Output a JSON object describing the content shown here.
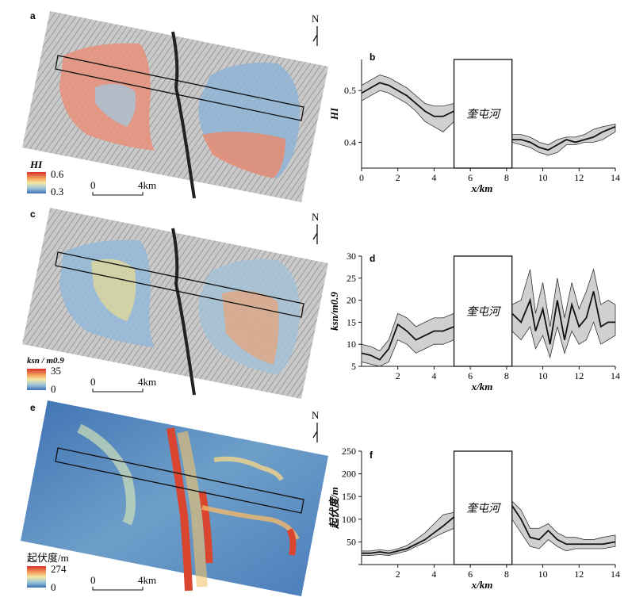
{
  "panel_letters": [
    "a",
    "b",
    "c",
    "d",
    "e",
    "f"
  ],
  "north_label": "N",
  "scale_bar": {
    "start": "0",
    "end": "4km"
  },
  "colorbars": [
    {
      "title": "HI",
      "max": "0.6",
      "min": "0.3"
    },
    {
      "title": "k_sn / m^0.9",
      "title_text": "ksn / m0.9",
      "max": "35",
      "min": "0"
    },
    {
      "title": "起伏度/m",
      "max": "274",
      "min": "0"
    }
  ],
  "colors": {
    "band_fill": "#d0d0d0",
    "line": "#111111",
    "ramp": [
      "#3b6fb6",
      "#9fc7d9",
      "#f4e8a3",
      "#f3a35e",
      "#d73027"
    ]
  },
  "chart_data": [
    {
      "type": "line",
      "panel": "b",
      "xlabel": "x/km",
      "ylabel": "HI",
      "xlim": [
        0,
        14
      ],
      "ylim": [
        0.35,
        0.56
      ],
      "xticks": [
        0,
        2,
        4,
        6,
        8,
        10,
        12,
        14
      ],
      "yticks": [
        0.4,
        0.5
      ],
      "ytick_labels": [
        "0.4",
        "0.5"
      ],
      "gap": {
        "x0": 5.1,
        "x1": 8.3,
        "label": "奎屯河"
      },
      "segments": [
        {
          "x": [
            0,
            0.5,
            1,
            1.5,
            2,
            2.5,
            3,
            3.5,
            4,
            4.5,
            5.1
          ],
          "y": [
            0.495,
            0.505,
            0.515,
            0.51,
            0.5,
            0.49,
            0.475,
            0.46,
            0.45,
            0.45,
            0.46
          ],
          "upper": [
            0.51,
            0.52,
            0.53,
            0.525,
            0.515,
            0.505,
            0.49,
            0.475,
            0.47,
            0.47,
            0.475
          ],
          "lower": [
            0.48,
            0.49,
            0.5,
            0.495,
            0.485,
            0.475,
            0.46,
            0.44,
            0.43,
            0.42,
            0.44
          ]
        },
        {
          "x": [
            8.3,
            8.8,
            9.3,
            9.8,
            10.3,
            10.8,
            11.3,
            11.8,
            12.3,
            12.8,
            13.3,
            14
          ],
          "y": [
            0.405,
            0.405,
            0.4,
            0.39,
            0.385,
            0.395,
            0.405,
            0.4,
            0.405,
            0.41,
            0.42,
            0.43
          ],
          "upper": [
            0.415,
            0.415,
            0.41,
            0.4,
            0.395,
            0.405,
            0.41,
            0.41,
            0.415,
            0.425,
            0.43,
            0.435
          ],
          "lower": [
            0.4,
            0.395,
            0.39,
            0.38,
            0.375,
            0.38,
            0.395,
            0.395,
            0.4,
            0.4,
            0.405,
            0.42
          ]
        }
      ]
    },
    {
      "type": "line",
      "panel": "d",
      "xlabel": "x/km",
      "ylabel": "ksn/m0.9",
      "xlim": [
        0,
        14
      ],
      "ylim": [
        5,
        30
      ],
      "xticks": [
        2,
        4,
        6,
        8,
        10,
        12,
        14
      ],
      "yticks": [
        5,
        10,
        15,
        20,
        25,
        30
      ],
      "ytick_labels": [
        "5",
        "10",
        "15",
        "20",
        "25",
        "30"
      ],
      "gap": {
        "x0": 5.1,
        "x1": 8.3,
        "label": "奎屯河"
      },
      "segments": [
        {
          "x": [
            0,
            0.5,
            1,
            1.5,
            2,
            2.5,
            3,
            3.5,
            4,
            4.5,
            5.1
          ],
          "y": [
            8,
            7.5,
            6.5,
            9,
            14.5,
            13,
            11,
            12,
            13,
            13,
            14
          ],
          "upper": [
            10,
            9.5,
            8.5,
            11,
            17,
            16,
            14,
            15,
            16,
            16,
            17
          ],
          "lower": [
            6,
            5.5,
            5,
            6,
            11,
            10,
            8,
            9,
            10,
            10,
            11
          ]
        },
        {
          "x": [
            8.3,
            8.8,
            9.3,
            9.6,
            10,
            10.4,
            10.8,
            11.2,
            11.6,
            12,
            12.4,
            12.8,
            13.2,
            13.6,
            14
          ],
          "y": [
            17,
            15,
            20,
            13,
            18,
            10,
            20,
            11,
            19,
            14,
            16,
            22,
            14,
            15,
            15
          ],
          "upper": [
            19,
            20,
            27,
            17,
            24,
            14,
            25,
            16,
            24,
            18,
            22,
            27,
            19,
            20,
            19
          ],
          "lower": [
            13,
            11,
            14,
            9,
            12,
            7,
            14,
            8,
            13,
            10,
            11,
            15,
            10,
            11,
            12
          ]
        }
      ]
    },
    {
      "type": "line",
      "panel": "f",
      "xlabel": "x/km",
      "ylabel": "起伏度/m",
      "xlim": [
        0,
        14
      ],
      "ylim": [
        0,
        250
      ],
      "xticks": [
        2,
        4,
        6,
        8,
        10,
        12,
        14
      ],
      "yticks": [
        0,
        50,
        100,
        150,
        200,
        250
      ],
      "ytick_labels": [
        "",
        "50",
        "100",
        "150",
        "200",
        "250"
      ],
      "gap": {
        "x0": 5.1,
        "x1": 8.3,
        "label": "奎屯河"
      },
      "segments": [
        {
          "x": [
            0,
            0.5,
            1,
            1.5,
            2,
            2.5,
            3,
            3.5,
            4,
            4.5,
            5.1
          ],
          "y": [
            25,
            25,
            28,
            25,
            30,
            35,
            45,
            55,
            70,
            85,
            105
          ],
          "upper": [
            30,
            30,
            33,
            30,
            35,
            42,
            55,
            70,
            90,
            110,
            115
          ],
          "lower": [
            20,
            20,
            22,
            20,
            25,
            30,
            40,
            48,
            60,
            70,
            80
          ]
        },
        {
          "x": [
            8.3,
            8.8,
            9.3,
            9.8,
            10.3,
            10.8,
            11.3,
            11.8,
            12.3,
            12.8,
            13.3,
            14
          ],
          "y": [
            130,
            100,
            60,
            55,
            75,
            55,
            45,
            45,
            45,
            45,
            45,
            50
          ],
          "upper": [
            140,
            120,
            80,
            80,
            90,
            70,
            60,
            60,
            55,
            55,
            60,
            65
          ],
          "lower": [
            100,
            70,
            40,
            35,
            55,
            40,
            30,
            35,
            35,
            35,
            35,
            40
          ]
        }
      ]
    }
  ]
}
